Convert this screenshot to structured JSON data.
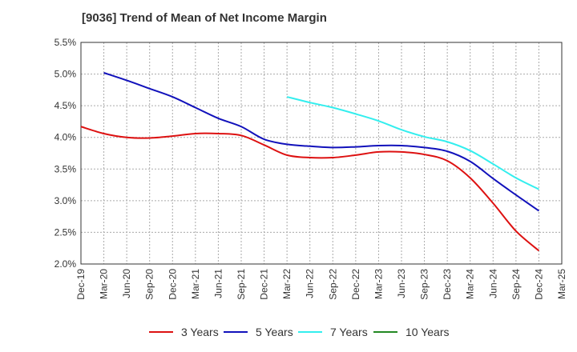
{
  "chart_data": {
    "type": "line",
    "title": "[9036]  Trend of Mean of Net Income Margin",
    "xlabel": "",
    "ylabel": "",
    "ylim": [
      2.0,
      5.5
    ],
    "yticks": [
      "2.0%",
      "2.5%",
      "3.0%",
      "3.5%",
      "4.0%",
      "4.5%",
      "5.0%",
      "5.5%"
    ],
    "categories": [
      "Dec-19",
      "Mar-20",
      "Jun-20",
      "Sep-20",
      "Dec-20",
      "Mar-21",
      "Jun-21",
      "Sep-21",
      "Dec-21",
      "Mar-22",
      "Jun-22",
      "Sep-22",
      "Dec-22",
      "Mar-23",
      "Jun-23",
      "Sep-23",
      "Dec-23",
      "Mar-24",
      "Jun-24",
      "Sep-24",
      "Dec-24",
      "Mar-25"
    ],
    "grid": true,
    "legend_position": "bottom",
    "series": [
      {
        "name": "3 Years",
        "color": "#dd1111",
        "values": [
          4.17,
          4.06,
          4.0,
          3.99,
          4.02,
          4.06,
          4.06,
          4.03,
          3.88,
          3.72,
          3.68,
          3.68,
          3.72,
          3.77,
          3.77,
          3.73,
          3.63,
          3.36,
          2.96,
          2.52,
          2.21,
          null
        ]
      },
      {
        "name": "5 Years",
        "color": "#1111bb",
        "values": [
          null,
          5.02,
          4.9,
          4.77,
          4.64,
          4.47,
          4.3,
          4.17,
          3.97,
          3.89,
          3.86,
          3.84,
          3.85,
          3.87,
          3.87,
          3.84,
          3.78,
          3.62,
          3.35,
          3.09,
          2.84,
          null
        ]
      },
      {
        "name": "7 Years",
        "color": "#33eeee",
        "values": [
          null,
          null,
          null,
          null,
          null,
          null,
          null,
          null,
          null,
          4.64,
          4.55,
          4.47,
          4.37,
          4.26,
          4.12,
          4.01,
          3.93,
          3.79,
          3.58,
          3.36,
          3.18,
          null
        ]
      },
      {
        "name": "10 Years",
        "color": "#228822",
        "values": [
          null,
          null,
          null,
          null,
          null,
          null,
          null,
          null,
          null,
          null,
          null,
          null,
          null,
          null,
          null,
          null,
          null,
          null,
          null,
          null,
          null,
          null
        ]
      }
    ]
  }
}
